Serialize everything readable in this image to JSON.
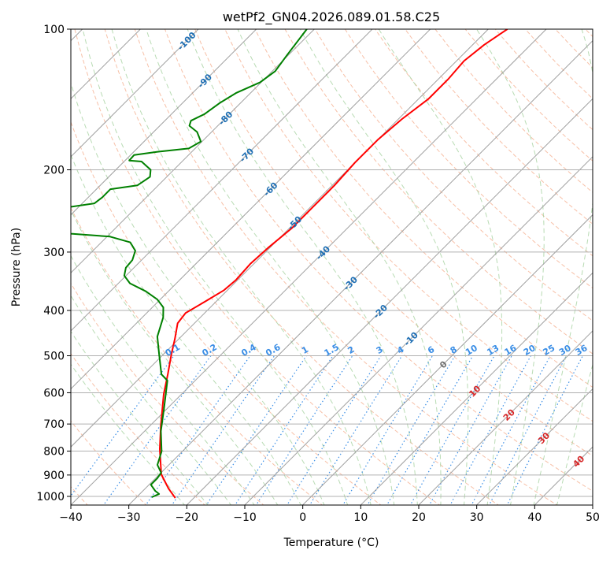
{
  "chart_data": {
    "type": "line",
    "subtype": "skew-t log-p",
    "title": "wetPf2_GN04.2026.089.01.58.C25",
    "xlabel": "Temperature (°C)",
    "ylabel": "Pressure (hPa)",
    "xlim": [
      -40,
      50
    ],
    "ylim": [
      1044,
      100
    ],
    "x_ticks": [
      -40,
      -30,
      -20,
      -10,
      0,
      10,
      20,
      30,
      40,
      50
    ],
    "y_ticks": [
      100,
      200,
      300,
      400,
      500,
      600,
      700,
      800,
      900,
      1000
    ],
    "grid": true,
    "series": [
      {
        "name": "temperature",
        "color": "#ff0000",
        "pressure": [
          1008,
          962,
          897,
          792,
          705,
          604,
          548,
          497,
          460,
          426,
          405,
          383,
          362,
          344,
          318,
          294,
          267,
          242,
          216,
          193,
          172,
          156,
          141,
          128,
          117,
          108,
          100
        ],
        "temperature": [
          -23.2,
          -26.0,
          -29.7,
          -34.3,
          -38.2,
          -43.1,
          -45.8,
          -48.6,
          -50.7,
          -52.9,
          -53.3,
          -51.9,
          -50.6,
          -50.3,
          -50.6,
          -50.3,
          -49.6,
          -49.6,
          -49.6,
          -50.0,
          -50.0,
          -49.4,
          -48.3,
          -48.3,
          -48.7,
          -48.0,
          -46.7
        ]
      },
      {
        "name": "dewpoint",
        "color": "#008000",
        "pressure": [
          1004,
          988,
          973,
          944,
          915,
          890,
          856,
          801,
          725,
          652,
          565,
          548,
          497,
          455,
          414,
          394,
          379,
          364,
          350,
          337,
          324,
          312,
          298,
          286,
          278,
          274,
          257,
          240,
          236,
          229,
          220,
          216,
          207,
          200,
          192,
          191,
          186,
          183,
          180,
          174,
          166,
          161,
          157,
          152,
          144,
          137,
          130,
          123,
          114,
          100
        ],
        "temperature": [
          -27.4,
          -26.7,
          -27.9,
          -29.7,
          -29.7,
          -30.0,
          -32.0,
          -33.6,
          -37.2,
          -40.4,
          -44.8,
          -46.9,
          -50.7,
          -54.1,
          -56.4,
          -58.1,
          -60.5,
          -63.9,
          -68.0,
          -70.3,
          -71.4,
          -71.6,
          -72.7,
          -75.0,
          -79.5,
          -86.7,
          -110,
          -91.4,
          -87.9,
          -87.6,
          -87.6,
          -83.6,
          -82.9,
          -84.0,
          -87.0,
          -89.3,
          -89.4,
          -85.9,
          -81.1,
          -80.2,
          -82.5,
          -84.9,
          -85.5,
          -84.3,
          -83.6,
          -82.5,
          -80.2,
          -79.5,
          -80.2,
          -81.3
        ]
      }
    ],
    "isotherm_labels": [
      {
        "text": "-100",
        "t": -100,
        "p": 106,
        "color": "#1f6fb4"
      },
      {
        "text": "-90",
        "t": -90,
        "p": 129,
        "color": "#1f6fb4"
      },
      {
        "text": "-80",
        "t": -80,
        "p": 155,
        "color": "#1f6fb4"
      },
      {
        "text": "-70",
        "t": -70,
        "p": 186,
        "color": "#1f6fb4"
      },
      {
        "text": "-60",
        "t": -60,
        "p": 220,
        "color": "#1f6fb4"
      },
      {
        "text": "-50",
        "t": -50,
        "p": 260,
        "color": "#1f6fb4"
      },
      {
        "text": "-40",
        "t": -40,
        "p": 301,
        "color": "#1f6fb4"
      },
      {
        "text": "-30",
        "t": -30,
        "p": 350,
        "color": "#1f6fb4"
      },
      {
        "text": "-20",
        "t": -20,
        "p": 402,
        "color": "#1f6fb4"
      },
      {
        "text": "-10",
        "t": -10,
        "p": 460,
        "color": "#1f6fb4"
      },
      {
        "text": "0",
        "t": 0,
        "p": 522,
        "color": "#707070"
      },
      {
        "text": "10",
        "t": 10,
        "p": 595,
        "color": "#d62728"
      },
      {
        "text": "20",
        "t": 20,
        "p": 669,
        "color": "#d62728"
      },
      {
        "text": "30",
        "t": 30,
        "p": 750,
        "color": "#d62728"
      },
      {
        "text": "40",
        "t": 40,
        "p": 841,
        "color": "#d62728"
      }
    ],
    "mixing_ratio_labels": [
      "0.1",
      "0.2",
      "0.4",
      "0.6",
      "1",
      "1.5",
      "2",
      "3",
      "4",
      "6",
      "8",
      "10",
      "13",
      "16",
      "20",
      "25",
      "30",
      "36"
    ],
    "colors": {
      "isotherm": "#a0a0a0",
      "dry_adiabat": "#f4a582",
      "moist_adiabat": "#a6d2a0",
      "mixing_ratio": "#3a8ee6"
    }
  }
}
